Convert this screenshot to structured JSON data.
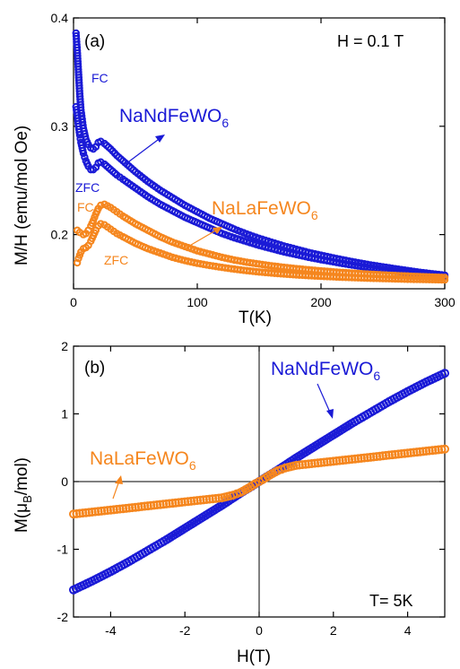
{
  "colors": {
    "nd": "#1a1ad6",
    "la": "#f5861e",
    "axis": "#000000"
  },
  "chart_data": [
    {
      "type": "scatter",
      "panel_label": "(a)",
      "annotation": "H = 0.1 T",
      "xlabel": "T(K)",
      "ylabel": "M/H (emu/mol Oe)",
      "xlim": [
        0,
        300
      ],
      "ylim": [
        0.15,
        0.4
      ],
      "xticks": [
        "0",
        "100",
        "200",
        "300"
      ],
      "yticks": [
        "0.2",
        "0.3",
        "0.4"
      ],
      "xtick_values": [
        0,
        100,
        200,
        300
      ],
      "ytick_values": [
        0.2,
        0.3,
        0.4
      ],
      "labels": {
        "nd_name": "NaNdFeWO",
        "la_name": "NaLaFeWO",
        "subscript": "6",
        "fc": "FC",
        "zfc": "ZFC"
      },
      "series": [
        {
          "name": "NaNdFeWO6 FC",
          "color_key": "nd",
          "x": [
            2,
            3,
            4,
            5,
            6,
            8,
            10,
            12,
            14,
            16,
            18,
            20,
            22,
            25,
            30,
            35,
            40,
            50,
            60,
            70,
            80,
            90,
            100,
            110,
            120,
            130,
            140,
            150,
            160,
            170,
            180,
            190,
            200,
            210,
            220,
            230,
            240,
            250,
            260,
            270,
            280,
            290,
            300
          ],
          "y": [
            0.386,
            0.37,
            0.35,
            0.33,
            0.315,
            0.298,
            0.288,
            0.283,
            0.28,
            0.279,
            0.281,
            0.285,
            0.286,
            0.284,
            0.279,
            0.273,
            0.268,
            0.258,
            0.249,
            0.241,
            0.234,
            0.227,
            0.221,
            0.215,
            0.21,
            0.205,
            0.2005,
            0.1965,
            0.193,
            0.1895,
            0.1865,
            0.1835,
            0.181,
            0.1785,
            0.1762,
            0.174,
            0.172,
            0.1702,
            0.1685,
            0.1668,
            0.1652,
            0.1638,
            0.1625
          ]
        },
        {
          "name": "NaNdFeWO6 ZFC",
          "color_key": "nd",
          "x": [
            2,
            3,
            4,
            5,
            6,
            8,
            10,
            12,
            14,
            16,
            18,
            20,
            22,
            25,
            30,
            35,
            40,
            50,
            60,
            70,
            80,
            90,
            100,
            110,
            120,
            130,
            140,
            150,
            160,
            170,
            180,
            190,
            200,
            210,
            220,
            230,
            240,
            250,
            260,
            270,
            280,
            290,
            300
          ],
          "y": [
            0.318,
            0.31,
            0.3,
            0.292,
            0.285,
            0.275,
            0.268,
            0.263,
            0.26,
            0.26,
            0.262,
            0.266,
            0.267,
            0.265,
            0.26,
            0.255,
            0.251,
            0.243,
            0.235,
            0.228,
            0.222,
            0.216,
            0.211,
            0.206,
            0.201,
            0.197,
            0.1935,
            0.19,
            0.187,
            0.184,
            0.1815,
            0.179,
            0.1768,
            0.1748,
            0.1728,
            0.171,
            0.1692,
            0.1676,
            0.1662,
            0.1648,
            0.1636,
            0.1625,
            0.1615
          ]
        },
        {
          "name": "NaLaFeWO6 FC",
          "color_key": "la",
          "x": [
            3,
            5,
            8,
            10,
            12,
            14,
            16,
            18,
            20,
            22,
            25,
            30,
            35,
            40,
            50,
            60,
            70,
            80,
            90,
            100,
            110,
            120,
            130,
            140,
            150,
            160,
            170,
            180,
            190,
            200,
            210,
            220,
            230,
            240,
            250,
            260,
            270,
            280,
            290,
            300
          ],
          "y": [
            0.204,
            0.202,
            0.2,
            0.201,
            0.204,
            0.208,
            0.213,
            0.219,
            0.224,
            0.227,
            0.228,
            0.225,
            0.221,
            0.217,
            0.21,
            0.204,
            0.198,
            0.193,
            0.189,
            0.185,
            0.182,
            0.179,
            0.1765,
            0.1745,
            0.1728,
            0.1712,
            0.1698,
            0.1686,
            0.1675,
            0.1665,
            0.1656,
            0.1648,
            0.1641,
            0.1634,
            0.1628,
            0.1622,
            0.1617,
            0.1612,
            0.1608,
            0.1604
          ]
        },
        {
          "name": "NaLaFeWO6 ZFC",
          "color_key": "la",
          "x": [
            3,
            4,
            5,
            6,
            8,
            10,
            12,
            14,
            16,
            18,
            20,
            22,
            25,
            30,
            35,
            40,
            50,
            60,
            70,
            80,
            90,
            100,
            110,
            120,
            130,
            140,
            150,
            160,
            170,
            180,
            190,
            200,
            210,
            220,
            230,
            240,
            250,
            260,
            270,
            280,
            290,
            300
          ],
          "y": [
            0.174,
            0.178,
            0.181,
            0.184,
            0.187,
            0.188,
            0.19,
            0.194,
            0.199,
            0.204,
            0.208,
            0.21,
            0.209,
            0.205,
            0.201,
            0.198,
            0.192,
            0.187,
            0.183,
            0.179,
            0.176,
            0.1735,
            0.1715,
            0.1697,
            0.1681,
            0.1667,
            0.1655,
            0.1645,
            0.1636,
            0.1628,
            0.1621,
            0.1615,
            0.161,
            0.1605,
            0.1601,
            0.1597,
            0.1594,
            0.1591,
            0.1588,
            0.1586,
            0.1584,
            0.1582
          ]
        }
      ]
    },
    {
      "type": "scatter",
      "panel_label": "(b)",
      "annotation": "T= 5K",
      "xlabel": "H(T)",
      "ylabel_main": "M(",
      "ylabel_mu": "μ",
      "ylabel_sub": "B",
      "ylabel_end": "/mol)",
      "xlim": [
        -5,
        5
      ],
      "ylim": [
        -2,
        2
      ],
      "xticks": [
        "-4",
        "-2",
        "0",
        "2",
        "4"
      ],
      "yticks": [
        "-2",
        "-1",
        "0",
        "1",
        "2"
      ],
      "xtick_values": [
        -4,
        -2,
        0,
        2,
        4
      ],
      "ytick_values": [
        -2,
        -1,
        0,
        1,
        2
      ],
      "labels": {
        "nd_name": "NaNdFeWO",
        "la_name": "NaLaFeWO",
        "subscript": "6"
      },
      "series": [
        {
          "name": "NaNdFeWO6",
          "color_key": "nd",
          "x": [
            -5,
            -4.5,
            -4,
            -3.5,
            -3,
            -2.5,
            -2,
            -1.5,
            -1,
            -0.5,
            -0.2,
            0,
            0.2,
            0.5,
            1,
            1.5,
            2,
            2.5,
            3,
            3.5,
            4,
            4.5,
            5
          ],
          "y": [
            -1.6,
            -1.47,
            -1.33,
            -1.18,
            -1.02,
            -0.86,
            -0.69,
            -0.52,
            -0.35,
            -0.17,
            -0.07,
            0,
            0.07,
            0.17,
            0.35,
            0.52,
            0.69,
            0.86,
            1.02,
            1.18,
            1.33,
            1.47,
            1.6
          ]
        },
        {
          "name": "NaLaFeWO6",
          "color_key": "la",
          "x": [
            -5,
            -4.5,
            -4,
            -3.5,
            -3,
            -2.5,
            -2,
            -1.5,
            -1,
            -0.7,
            -0.5,
            -0.3,
            -0.1,
            0,
            0.1,
            0.3,
            0.5,
            0.7,
            1,
            1.5,
            2,
            2.5,
            3,
            3.5,
            4,
            4.5,
            5
          ],
          "y": [
            -0.48,
            -0.45,
            -0.42,
            -0.39,
            -0.36,
            -0.33,
            -0.3,
            -0.27,
            -0.24,
            -0.2,
            -0.16,
            -0.1,
            -0.03,
            0,
            0.03,
            0.1,
            0.16,
            0.2,
            0.24,
            0.27,
            0.3,
            0.33,
            0.36,
            0.39,
            0.42,
            0.45,
            0.48
          ]
        }
      ]
    }
  ]
}
